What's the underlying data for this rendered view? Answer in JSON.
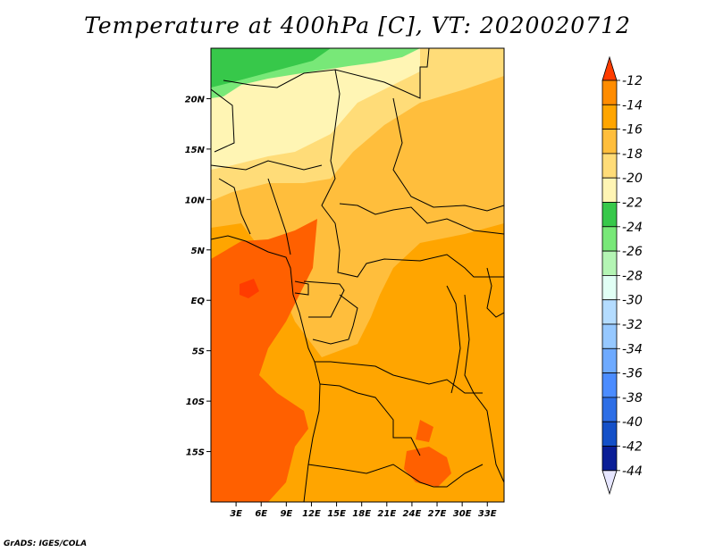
{
  "title": "Temperature at 400hPa [C], VT: 2020020712",
  "credit": "GrADS: IGES/COLA",
  "map": {
    "lon_range": [
      0,
      35
    ],
    "lat_range": [
      -20,
      25
    ],
    "lat_ticks": [
      "20N",
      "15N",
      "10N",
      "5N",
      "EQ",
      "5S",
      "10S",
      "15S"
    ],
    "lon_ticks": [
      "3E",
      "6E",
      "9E",
      "12E",
      "15E",
      "18E",
      "21E",
      "24E",
      "27E",
      "30E",
      "33E"
    ]
  },
  "colorbar": {
    "labels": [
      "-12",
      "-14",
      "-16",
      "-18",
      "-20",
      "-22",
      "-24",
      "-26",
      "-28",
      "-30",
      "-32",
      "-34",
      "-36",
      "-38",
      "-40",
      "-42",
      "-44"
    ],
    "colors": [
      "#ff6000",
      "#ff8c00",
      "#ffa500",
      "#ffbe3c",
      "#ffdc78",
      "#fff5b4",
      "#37c84a",
      "#78e878",
      "#b4f5b4",
      "#e1fff5",
      "#b4dcff",
      "#96c8ff",
      "#6eaaff",
      "#4b8cff",
      "#2d6ee6",
      "#1450c8",
      "#0a1e96",
      "#e6e6ff"
    ],
    "top_color": "#ff3c00",
    "bottom_color": "#e6e6ff"
  }
}
